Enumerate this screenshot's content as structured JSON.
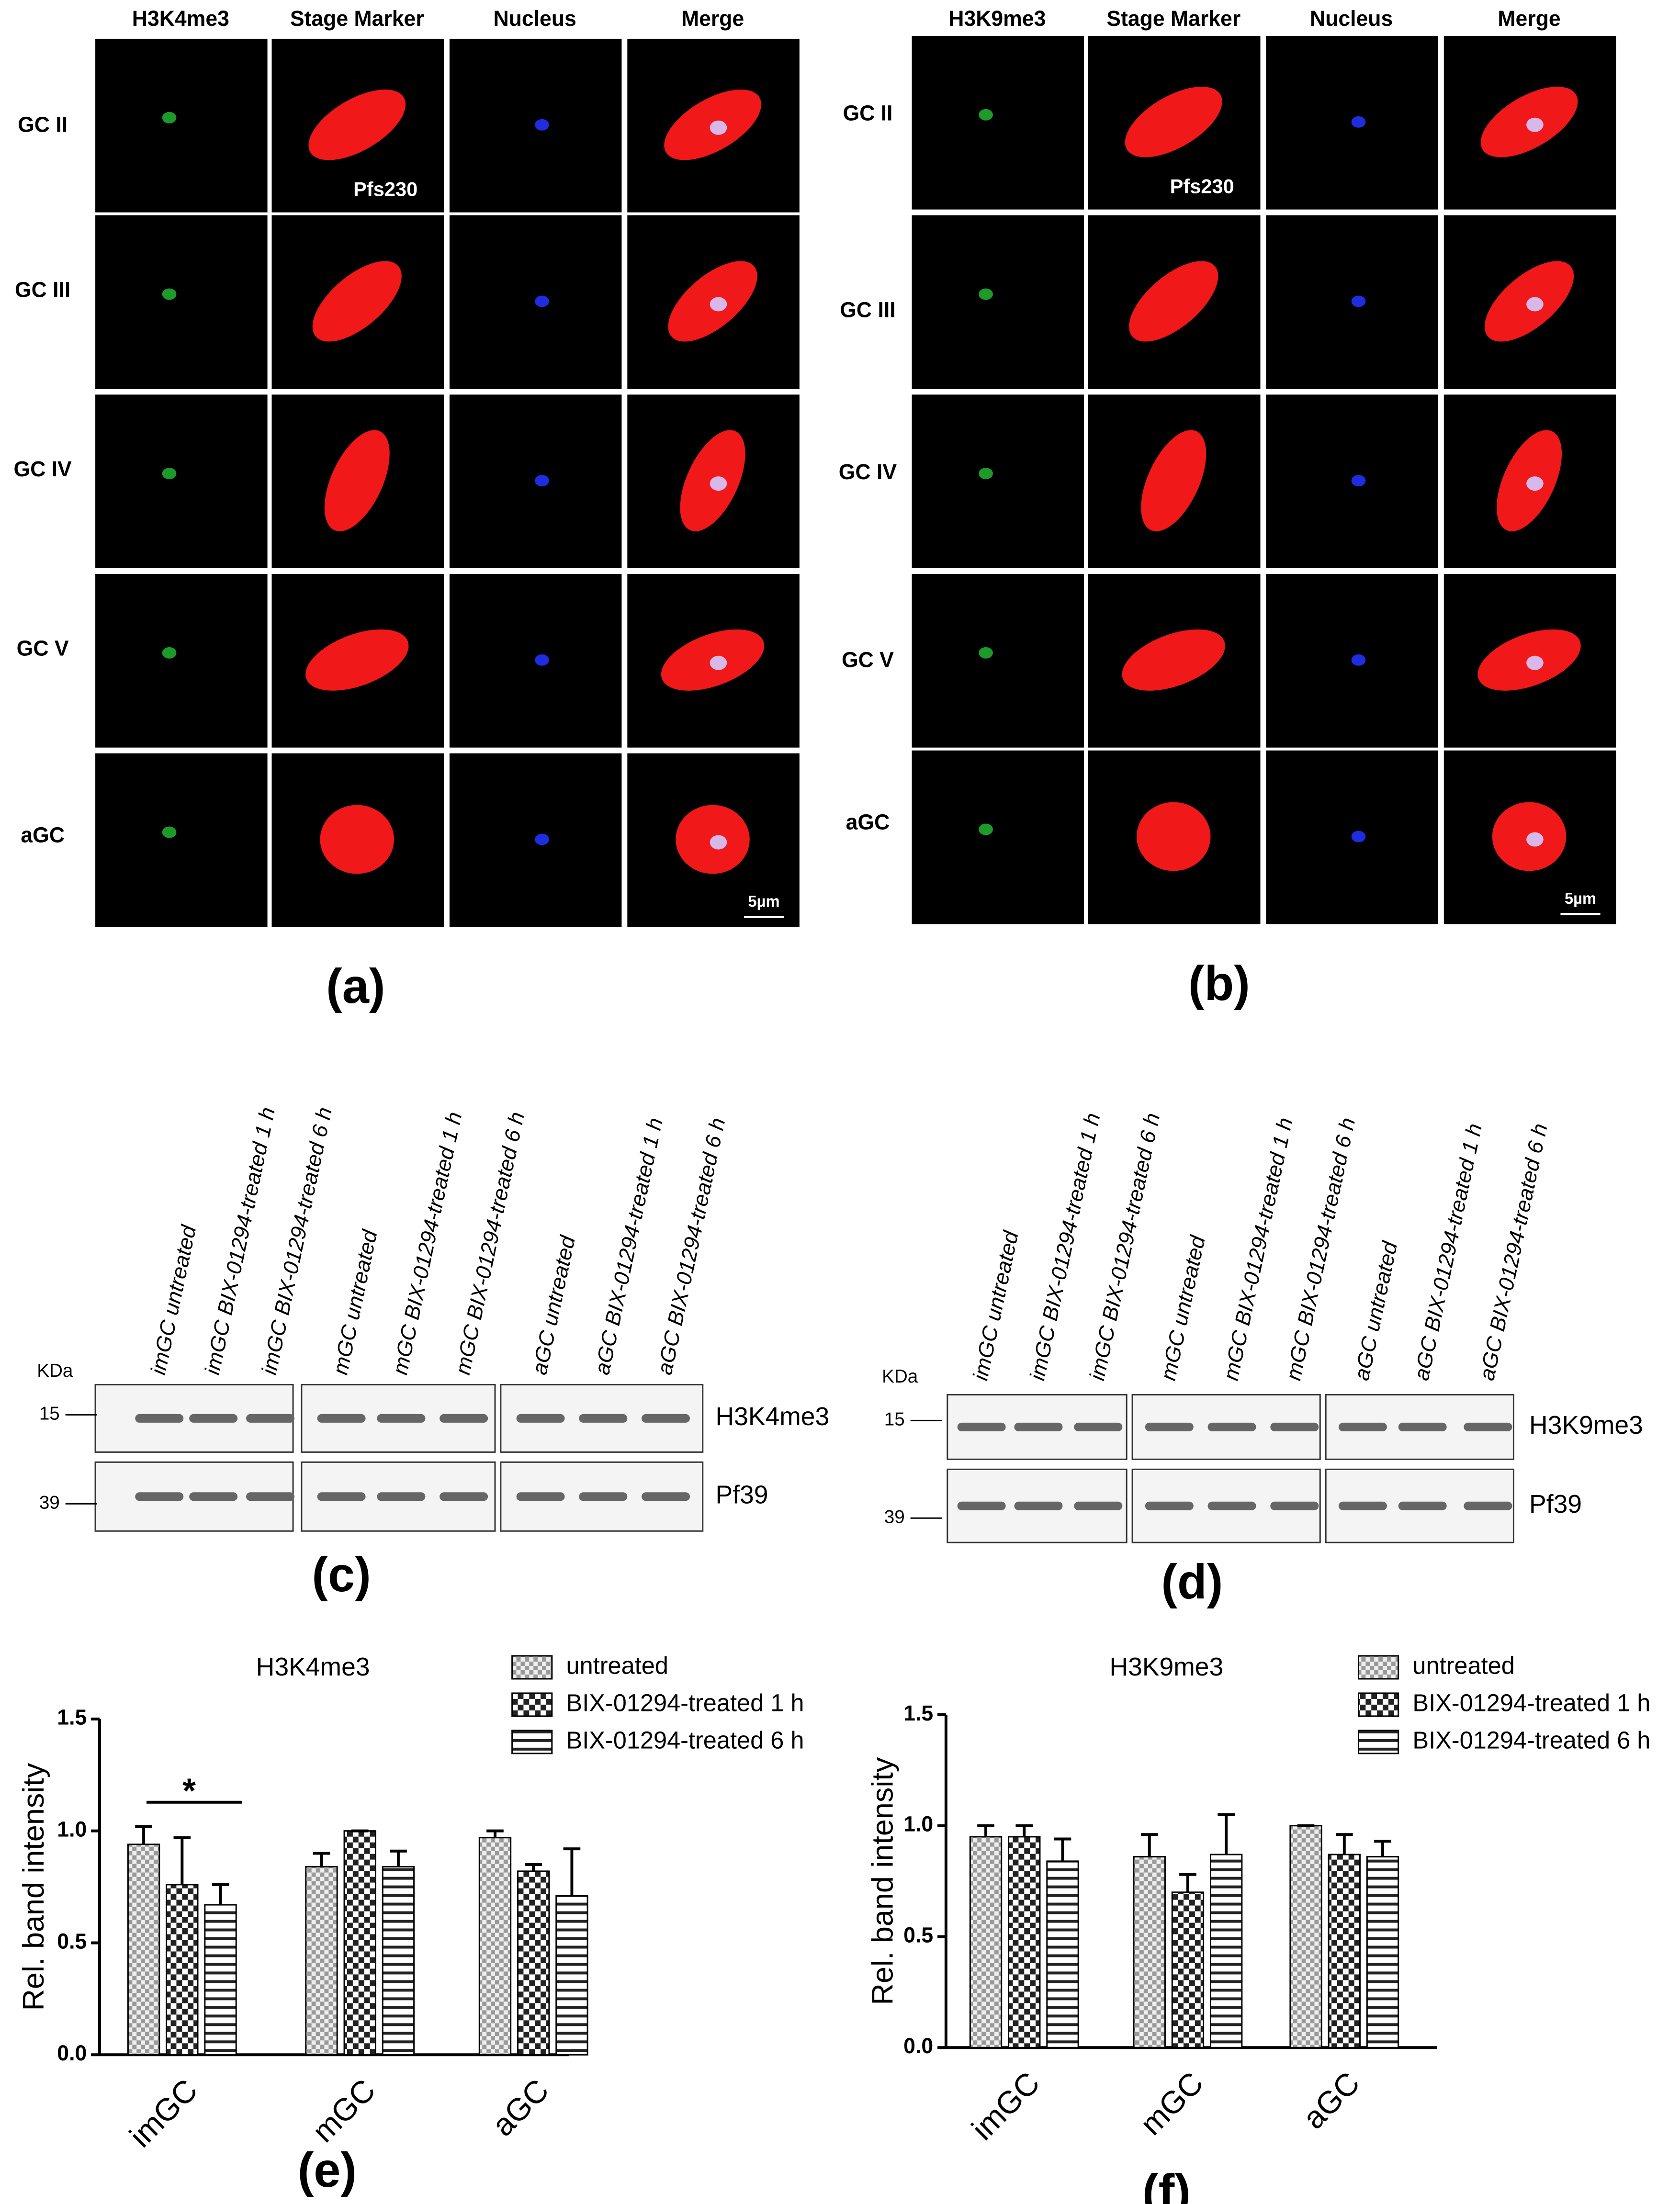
{
  "panel_a": {
    "label": "(a)",
    "columns": [
      "H3K4me3",
      "Stage Marker",
      "Nucleus",
      "Merge"
    ],
    "rows": [
      "GC  II",
      "GC  III",
      "GC  IV",
      "GC  V",
      "aGC"
    ],
    "stage_label": "Pfs230",
    "scale_bar": "5µm"
  },
  "panel_b": {
    "label": "(b)",
    "columns": [
      "H3K9me3",
      "Stage Marker",
      "Nucleus",
      "Merge"
    ],
    "rows": [
      "GC  II",
      "GC III",
      "GC  IV",
      "GC  V",
      "aGC"
    ],
    "stage_label": "Pfs230",
    "scale_bar": "5µm"
  },
  "panel_c": {
    "label": "(c)",
    "unit": "KDa",
    "markers": [
      "15",
      "39"
    ],
    "proteins": [
      "H3K4me3",
      "Pf39"
    ],
    "lanes": [
      "imGC untreated",
      "imGC BIX-01294-treated 1 h",
      "imGC  BIX-01294-treated 6 h",
      "mGC untreated",
      "mGC BIX-01294-treated 1 h",
      "mGC  BIX-01294-treated 6 h",
      "aGC untreated",
      "aGC BIX-01294-treated 1 h",
      "aGC  BIX-01294-treated 6 h"
    ]
  },
  "panel_d": {
    "label": "(d)",
    "unit": "KDa",
    "markers": [
      "15",
      "39"
    ],
    "proteins": [
      "H3K9me3",
      "Pf39"
    ],
    "lanes": [
      "imGC untreated",
      "imGC BIX-01294-treated 1 h",
      "imGC  BIX-01294-treated 6 h",
      "mGC untreated",
      "mGC BIX-01294-treated 1 h",
      "mGC  BIX-01294-treated 6 h",
      "aGC untreated",
      "aGC BIX-01294-treated 1 h",
      "aGC  BIX-01294-treated 6 h"
    ]
  },
  "chart_data": [
    {
      "type": "bar",
      "panel_label": "(e)",
      "title": "H3K4me3",
      "y_label": "Rel. band intensity",
      "categories": [
        "imGC",
        "mGC",
        "aGC"
      ],
      "series": [
        {
          "name": "untreated",
          "pattern": "fine-checker",
          "values": [
            0.94,
            0.84,
            0.97
          ],
          "errors": [
            0.08,
            0.06,
            0.03
          ]
        },
        {
          "name": "BIX-01294-treated 1 h",
          "pattern": "coarse-checker",
          "values": [
            0.76,
            1.0,
            0.82
          ],
          "errors": [
            0.21,
            0,
            0.03
          ]
        },
        {
          "name": "BIX-01294-treated 6 h",
          "pattern": "h-stripes",
          "values": [
            0.67,
            0.84,
            0.71
          ],
          "errors": [
            0.09,
            0.07,
            0.21
          ]
        }
      ],
      "ylim": [
        0,
        1.5
      ],
      "yticks": [
        {
          "value": 0,
          "label": "0.0"
        },
        {
          "value": 0.5,
          "label": "0.5"
        },
        {
          "value": 1,
          "label": "1.0"
        },
        {
          "value": 1.5,
          "label": "1.5"
        }
      ],
      "annotation": "*"
    },
    {
      "type": "bar",
      "panel_label": "(f)",
      "title": "H3K9me3",
      "y_label": "Rel. band intensity",
      "categories": [
        "imGC",
        "mGC",
        "aGC"
      ],
      "series": [
        {
          "name": "untreated",
          "pattern": "fine-checker",
          "values": [
            0.95,
            0.86,
            1.0
          ],
          "errors": [
            0.05,
            0.1,
            0
          ]
        },
        {
          "name": "BIX-01294-treated 1 h",
          "pattern": "coarse-checker",
          "values": [
            0.95,
            0.7,
            0.87
          ],
          "errors": [
            0.05,
            0.08,
            0.09
          ]
        },
        {
          "name": "BIX-01294-treated 6 h",
          "pattern": "h-stripes",
          "values": [
            0.84,
            0.87,
            0.86
          ],
          "errors": [
            0.1,
            0.18,
            0.07
          ]
        }
      ],
      "ylim": [
        0,
        1.5
      ],
      "yticks": [
        {
          "value": 0,
          "label": "0.0"
        },
        {
          "value": 0.5,
          "label": "0.5"
        },
        {
          "value": 1,
          "label": "1.0"
        },
        {
          "value": 1.5,
          "label": "1.5"
        }
      ]
    }
  ]
}
